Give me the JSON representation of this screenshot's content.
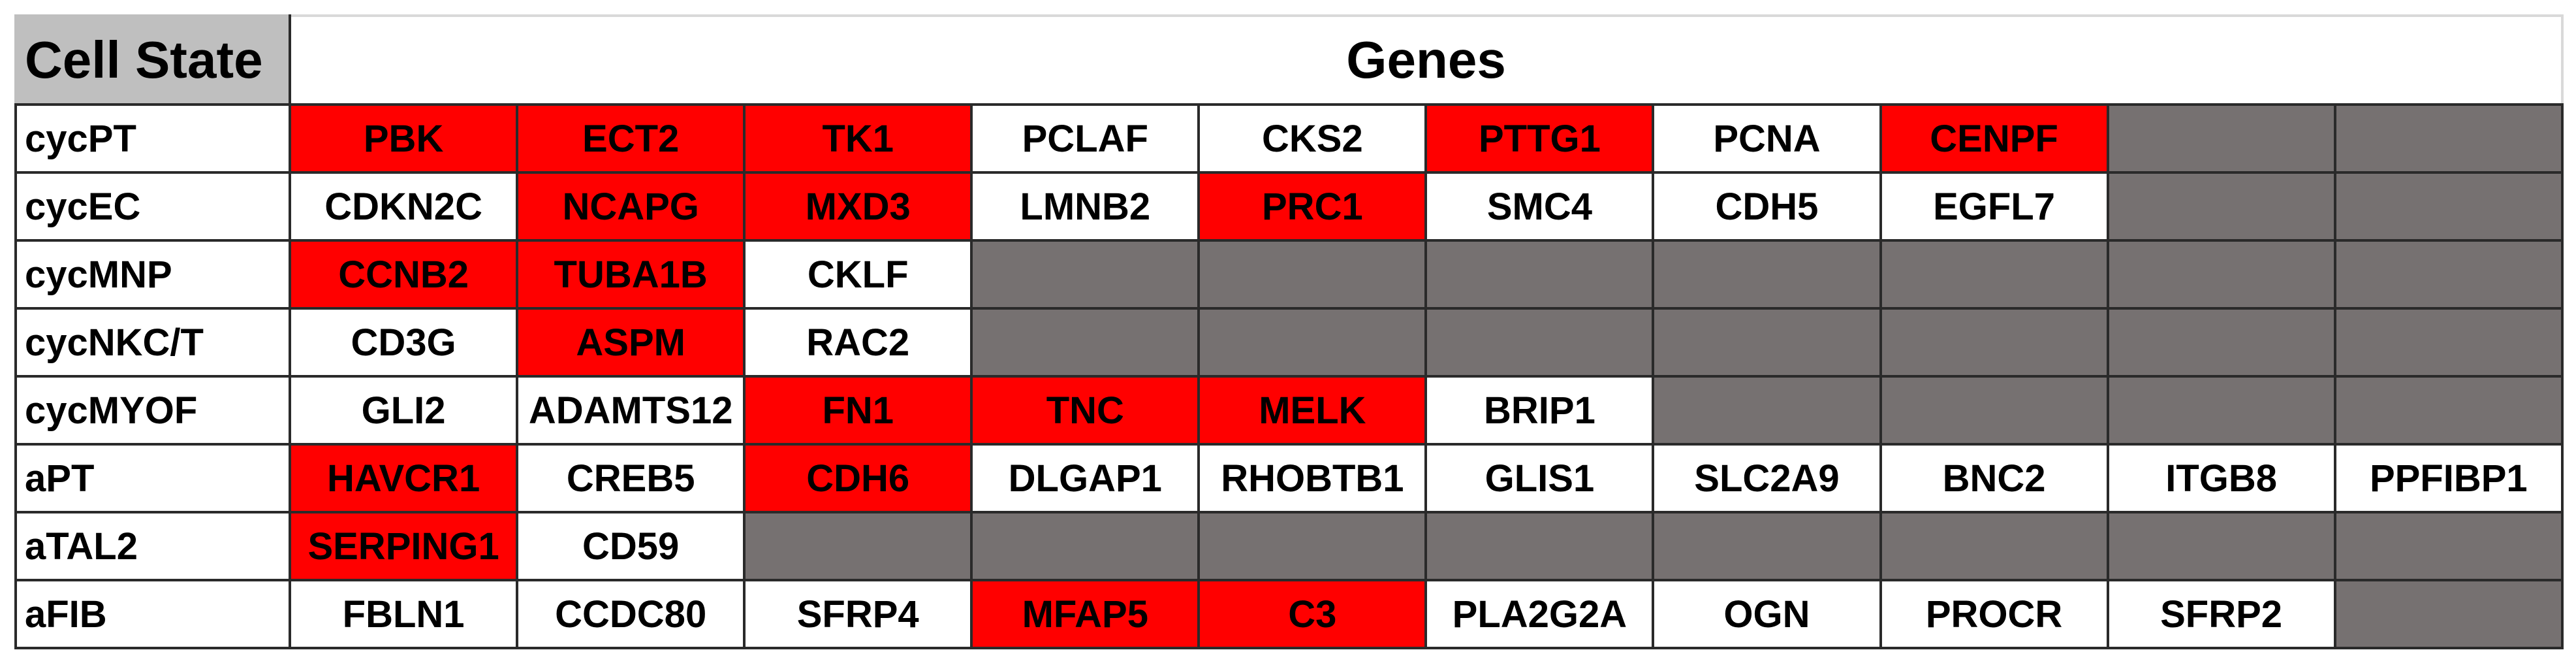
{
  "header": {
    "cell_state_label": "Cell State",
    "genes_label": "Genes"
  },
  "colors": {
    "highlight": "#ff0000",
    "empty": "#767171",
    "header_bg": "#bfbfbf",
    "plain": "#ffffff"
  },
  "rows": [
    {
      "state": "cycPT",
      "genes": [
        {
          "name": "PBK",
          "status": "highlighted"
        },
        {
          "name": "ECT2",
          "status": "highlighted"
        },
        {
          "name": "TK1",
          "status": "highlighted"
        },
        {
          "name": "PCLAF",
          "status": "plain"
        },
        {
          "name": "CKS2",
          "status": "plain"
        },
        {
          "name": "PTTG1",
          "status": "highlighted"
        },
        {
          "name": "PCNA",
          "status": "plain"
        },
        {
          "name": "CENPF",
          "status": "highlighted"
        },
        {
          "name": "",
          "status": "empty"
        },
        {
          "name": "",
          "status": "empty"
        }
      ]
    },
    {
      "state": "cycEC",
      "genes": [
        {
          "name": "CDKN2C",
          "status": "plain"
        },
        {
          "name": "NCAPG",
          "status": "highlighted"
        },
        {
          "name": "MXD3",
          "status": "highlighted"
        },
        {
          "name": "LMNB2",
          "status": "plain"
        },
        {
          "name": "PRC1",
          "status": "highlighted"
        },
        {
          "name": "SMC4",
          "status": "plain"
        },
        {
          "name": "CDH5",
          "status": "plain"
        },
        {
          "name": "EGFL7",
          "status": "plain"
        },
        {
          "name": "",
          "status": "empty"
        },
        {
          "name": "",
          "status": "empty"
        }
      ]
    },
    {
      "state": "cycMNP",
      "genes": [
        {
          "name": "CCNB2",
          "status": "highlighted"
        },
        {
          "name": "TUBA1B",
          "status": "highlighted"
        },
        {
          "name": "CKLF",
          "status": "plain"
        },
        {
          "name": "",
          "status": "empty"
        },
        {
          "name": "",
          "status": "empty"
        },
        {
          "name": "",
          "status": "empty"
        },
        {
          "name": "",
          "status": "empty"
        },
        {
          "name": "",
          "status": "empty"
        },
        {
          "name": "",
          "status": "empty"
        },
        {
          "name": "",
          "status": "empty"
        }
      ]
    },
    {
      "state": "cycNKC/T",
      "genes": [
        {
          "name": "CD3G",
          "status": "plain"
        },
        {
          "name": "ASPM",
          "status": "highlighted"
        },
        {
          "name": "RAC2",
          "status": "plain"
        },
        {
          "name": "",
          "status": "empty"
        },
        {
          "name": "",
          "status": "empty"
        },
        {
          "name": "",
          "status": "empty"
        },
        {
          "name": "",
          "status": "empty"
        },
        {
          "name": "",
          "status": "empty"
        },
        {
          "name": "",
          "status": "empty"
        },
        {
          "name": "",
          "status": "empty"
        }
      ]
    },
    {
      "state": "cycMYOF",
      "genes": [
        {
          "name": "GLI2",
          "status": "plain"
        },
        {
          "name": "ADAMTS12",
          "status": "plain"
        },
        {
          "name": "FN1",
          "status": "highlighted"
        },
        {
          "name": "TNC",
          "status": "highlighted"
        },
        {
          "name": "MELK",
          "status": "highlighted"
        },
        {
          "name": "BRIP1",
          "status": "plain"
        },
        {
          "name": "",
          "status": "empty"
        },
        {
          "name": "",
          "status": "empty"
        },
        {
          "name": "",
          "status": "empty"
        },
        {
          "name": "",
          "status": "empty"
        }
      ]
    },
    {
      "state": "aPT",
      "genes": [
        {
          "name": "HAVCR1",
          "status": "highlighted"
        },
        {
          "name": "CREB5",
          "status": "plain"
        },
        {
          "name": "CDH6",
          "status": "highlighted"
        },
        {
          "name": "DLGAP1",
          "status": "plain"
        },
        {
          "name": "RHOBTB1",
          "status": "plain"
        },
        {
          "name": "GLIS1",
          "status": "plain"
        },
        {
          "name": "SLC2A9",
          "status": "plain"
        },
        {
          "name": "BNC2",
          "status": "plain"
        },
        {
          "name": "ITGB8",
          "status": "plain"
        },
        {
          "name": "PPFIBP1",
          "status": "plain"
        }
      ]
    },
    {
      "state": "aTAL2",
      "genes": [
        {
          "name": "SERPING1",
          "status": "highlighted"
        },
        {
          "name": "CD59",
          "status": "plain"
        },
        {
          "name": "",
          "status": "empty"
        },
        {
          "name": "",
          "status": "empty"
        },
        {
          "name": "",
          "status": "empty"
        },
        {
          "name": "",
          "status": "empty"
        },
        {
          "name": "",
          "status": "empty"
        },
        {
          "name": "",
          "status": "empty"
        },
        {
          "name": "",
          "status": "empty"
        },
        {
          "name": "",
          "status": "empty"
        }
      ]
    },
    {
      "state": "aFIB",
      "genes": [
        {
          "name": "FBLN1",
          "status": "plain"
        },
        {
          "name": "CCDC80",
          "status": "plain"
        },
        {
          "name": "SFRP4",
          "status": "plain"
        },
        {
          "name": "MFAP5",
          "status": "highlighted"
        },
        {
          "name": "C3",
          "status": "highlighted"
        },
        {
          "name": "PLA2G2A",
          "status": "plain"
        },
        {
          "name": "OGN",
          "status": "plain"
        },
        {
          "name": "PROCR",
          "status": "plain"
        },
        {
          "name": "SFRP2",
          "status": "plain"
        },
        {
          "name": "",
          "status": "empty"
        }
      ]
    }
  ]
}
